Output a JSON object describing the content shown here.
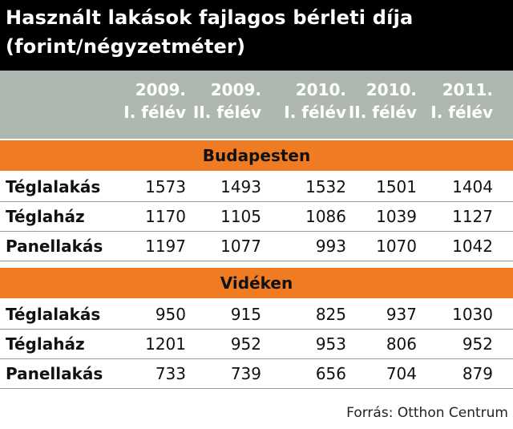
{
  "title": {
    "line1": "Használt lakások fajlagos bérleti díja",
    "line2": "(forint/négyzetméter)"
  },
  "columns": [
    {
      "year": "2009.",
      "half": "I. félév"
    },
    {
      "year": "2009.",
      "half": "II. félév"
    },
    {
      "year": "2010.",
      "half": "I. félév"
    },
    {
      "year": "2010.",
      "half": "II. félév"
    },
    {
      "year": "2011.",
      "half": "I. félév"
    }
  ],
  "sections": [
    {
      "label": "Budapesten",
      "rows": [
        {
          "label": "Téglalakás",
          "values": [
            1573,
            1493,
            1532,
            1501,
            1404
          ]
        },
        {
          "label": "Téglaház",
          "values": [
            1170,
            1105,
            1086,
            1039,
            1127
          ]
        },
        {
          "label": "Panellakás",
          "values": [
            1197,
            1077,
            993,
            1070,
            1042
          ]
        }
      ]
    },
    {
      "label": "Vidéken",
      "rows": [
        {
          "label": "Téglalakás",
          "values": [
            950,
            915,
            825,
            937,
            1030
          ]
        },
        {
          "label": "Téglaház",
          "values": [
            1201,
            952,
            953,
            806,
            952
          ]
        },
        {
          "label": "Panellakás",
          "values": [
            733,
            739,
            656,
            704,
            879
          ]
        }
      ]
    }
  ],
  "source": "Forrás: Otthon Centrum",
  "colors": {
    "title_band": "#000000",
    "header_band": "#aeb8b0",
    "section_band": "#ef7b22"
  },
  "chart_data": {
    "type": "table",
    "title": "Használt lakások fajlagos bérleti díja (forint/négyzetméter)",
    "columns": [
      "2009. I. félév",
      "2009. II. félév",
      "2010. I. félév",
      "2010. II. félév",
      "2011. I. félév"
    ],
    "groups": [
      {
        "name": "Budapesten",
        "series": [
          {
            "name": "Téglalakás",
            "values": [
              1573,
              1493,
              1532,
              1501,
              1404
            ]
          },
          {
            "name": "Téglaház",
            "values": [
              1170,
              1105,
              1086,
              1039,
              1127
            ]
          },
          {
            "name": "Panellakás",
            "values": [
              1197,
              1077,
              993,
              1070,
              1042
            ]
          }
        ]
      },
      {
        "name": "Vidéken",
        "series": [
          {
            "name": "Téglalakás",
            "values": [
              950,
              915,
              825,
              937,
              1030
            ]
          },
          {
            "name": "Téglaház",
            "values": [
              1201,
              952,
              953,
              806,
              952
            ]
          },
          {
            "name": "Panellakás",
            "values": [
              733,
              739,
              656,
              704,
              879
            ]
          }
        ]
      }
    ],
    "source": "Forrás: Otthon Centrum"
  }
}
